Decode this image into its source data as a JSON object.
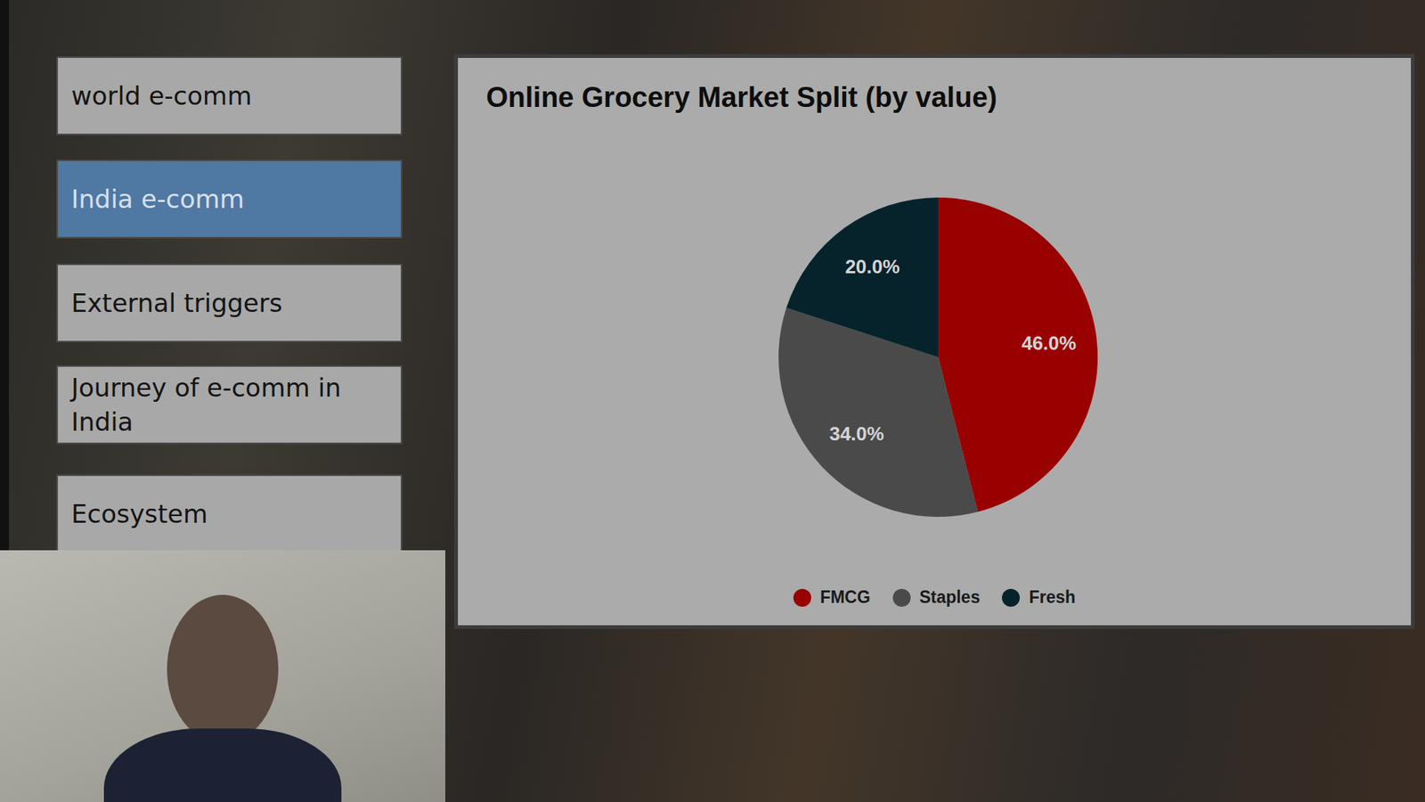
{
  "chart_data": {
    "type": "pie",
    "title": "Online Grocery Market Split (by value)",
    "categories": [
      "FMCG",
      "Staples",
      "Fresh"
    ],
    "values": [
      46,
      34,
      20
    ],
    "value_labels": [
      "46.0%",
      "34.0%",
      "20.0%"
    ],
    "colors": [
      "#990000",
      "#4a4a4a",
      "#06232b"
    ],
    "data_labels": true,
    "legend": "bottom"
  },
  "menu": {
    "items": [
      {
        "label": "world e-comm",
        "selected": false
      },
      {
        "label": "India e-comm",
        "selected": true
      },
      {
        "label": "External triggers",
        "selected": false
      },
      {
        "label": "Journey of e-comm in India",
        "selected": false
      },
      {
        "label": "Ecosystem",
        "selected": false
      }
    ]
  }
}
